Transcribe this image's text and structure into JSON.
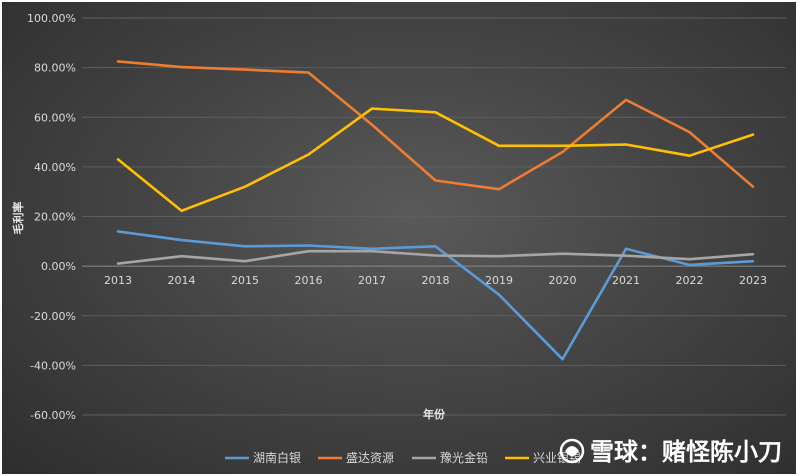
{
  "chart_data": {
    "type": "line",
    "title": "",
    "xlabel": "年份",
    "ylabel": "毛利率",
    "ylim": [
      -60,
      100
    ],
    "y_ticks": [
      "100.00%",
      "80.00%",
      "60.00%",
      "40.00%",
      "20.00%",
      "0.00%",
      "-20.00%",
      "-40.00%",
      "-60.00%"
    ],
    "categories": [
      "2013",
      "2014",
      "2015",
      "2016",
      "2017",
      "2018",
      "2019",
      "2020",
      "2021",
      "2022",
      "2023"
    ],
    "grid": true,
    "legend": "bottom",
    "series": [
      {
        "name": "湖南白银",
        "color": "#5b9bd5",
        "values": [
          14.0,
          10.5,
          8.0,
          8.3,
          7.0,
          8.0,
          -11.5,
          -37.5,
          7.0,
          0.5,
          2.0
        ]
      },
      {
        "name": "盛达资源",
        "color": "#ed7d31",
        "values": [
          82.5,
          80.2,
          79.2,
          78.0,
          57.0,
          34.5,
          31.0,
          46.0,
          67.0,
          54.0,
          32.0
        ]
      },
      {
        "name": "豫光金铅",
        "color": "#a5a5a5",
        "values": [
          1.0,
          4.0,
          2.0,
          6.0,
          6.0,
          4.3,
          4.0,
          5.0,
          4.2,
          2.8,
          4.8
        ]
      },
      {
        "name": "兴业银锡",
        "color": "#ffc000",
        "values": [
          43.0,
          22.3,
          32.0,
          45.0,
          63.5,
          62.0,
          48.5,
          48.5,
          49.0,
          44.5,
          53.0
        ]
      }
    ]
  },
  "watermark": {
    "logo_icon": "snowball-logo-icon",
    "text": "雪球：赌怪陈小刀"
  }
}
